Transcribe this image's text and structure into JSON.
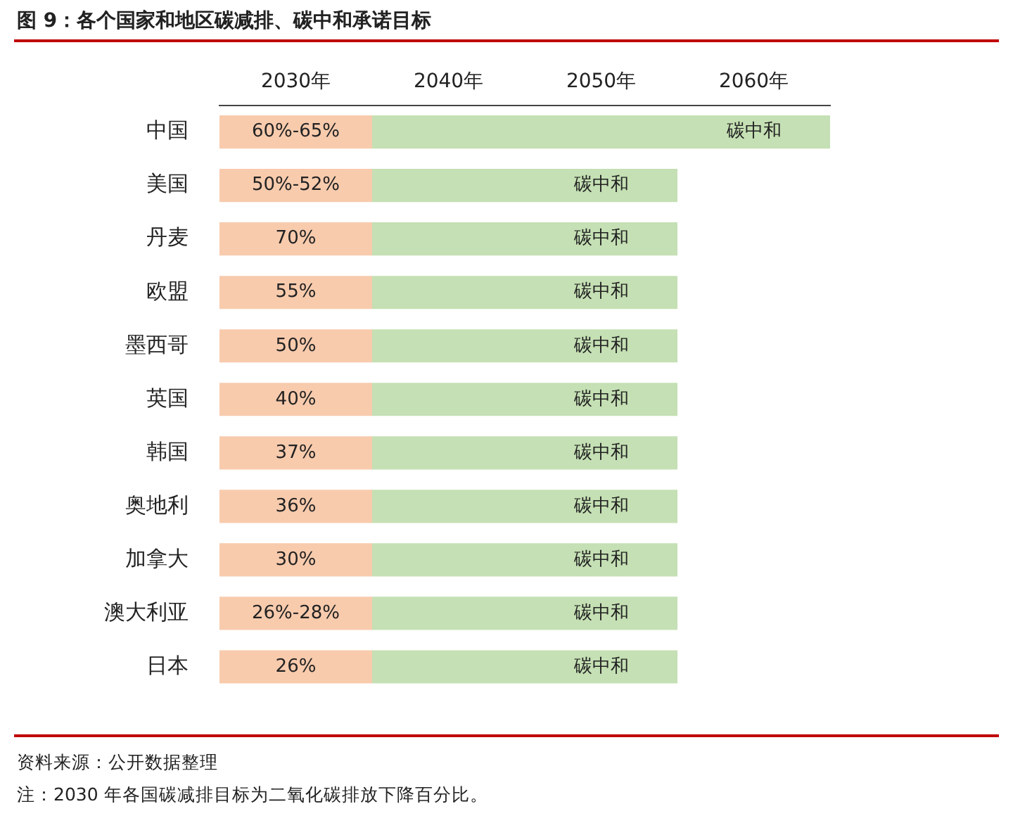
{
  "chart_data": {
    "type": "bar",
    "orientation": "horizontal",
    "title": "图 9：各个国家和地区碳减排、碳中和承诺目标",
    "categories": [
      "中国",
      "美国",
      "丹麦",
      "欧盟",
      "墨西哥",
      "英国",
      "韩国",
      "奥地利",
      "加拿大",
      "澳大利亚",
      "日本"
    ],
    "series": [
      {
        "color": "#f8cbad",
        "base": [
          2025,
          2025,
          2025,
          2025,
          2025,
          2025,
          2025,
          2025,
          2025,
          2025,
          2025
        ],
        "values": [
          10,
          10,
          10,
          10,
          10,
          10,
          10,
          10,
          10,
          10,
          10
        ]
      },
      {
        "color": "#c5e0b4",
        "base": [
          2035,
          2035,
          2035,
          2035,
          2035,
          2035,
          2035,
          2035,
          2035,
          2035,
          2035
        ],
        "values": [
          30,
          20,
          20,
          20,
          20,
          20,
          20,
          20,
          20,
          20,
          20
        ]
      }
    ],
    "xlim": [
      2025,
      2065
    ],
    "xticks": [
      {
        "value": 2030,
        "label": "2030年"
      },
      {
        "value": 2040,
        "label": "2040年"
      },
      {
        "value": 2050,
        "label": "2050年"
      },
      {
        "value": 2060,
        "label": "2060年"
      }
    ],
    "grid": false,
    "legend": false,
    "annotations": [
      "资料来源：公开数据整理",
      "注：2030 年各国碳减排目标为二氧化碳排放下降百分比。",
      {
        "text": "60%-65%",
        "x": 2030,
        "y": "中国"
      },
      {
        "text": "碳中和",
        "x": 2060,
        "y": "中国"
      },
      {
        "text": "50%-52%",
        "x": 2030,
        "y": "美国"
      },
      {
        "text": "碳中和",
        "x": 2050,
        "y": "美国"
      },
      {
        "text": "70%",
        "x": 2030,
        "y": "丹麦"
      },
      {
        "text": "碳中和",
        "x": 2050,
        "y": "丹麦"
      },
      {
        "text": "55%",
        "x": 2030,
        "y": "欧盟"
      },
      {
        "text": "碳中和",
        "x": 2050,
        "y": "欧盟"
      },
      {
        "text": "50%",
        "x": 2030,
        "y": "墨西哥"
      },
      {
        "text": "碳中和",
        "x": 2050,
        "y": "墨西哥"
      },
      {
        "text": "40%",
        "x": 2030,
        "y": "英国"
      },
      {
        "text": "碳中和",
        "x": 2050,
        "y": "英国"
      },
      {
        "text": "37%",
        "x": 2030,
        "y": "韩国"
      },
      {
        "text": "碳中和",
        "x": 2050,
        "y": "韩国"
      },
      {
        "text": "36%",
        "x": 2030,
        "y": "奥地利"
      },
      {
        "text": "碳中和",
        "x": 2050,
        "y": "奥地利"
      },
      {
        "text": "30%",
        "x": 2030,
        "y": "加拿大"
      },
      {
        "text": "碳中和",
        "x": 2050,
        "y": "加拿大"
      },
      {
        "text": "26%-28%",
        "x": 2030,
        "y": "澳大利亚"
      },
      {
        "text": "碳中和",
        "x": 2050,
        "y": "澳大利亚"
      },
      {
        "text": "26%",
        "x": 2030,
        "y": "日本"
      },
      {
        "text": "碳中和",
        "x": 2050,
        "y": "日本"
      }
    ]
  }
}
